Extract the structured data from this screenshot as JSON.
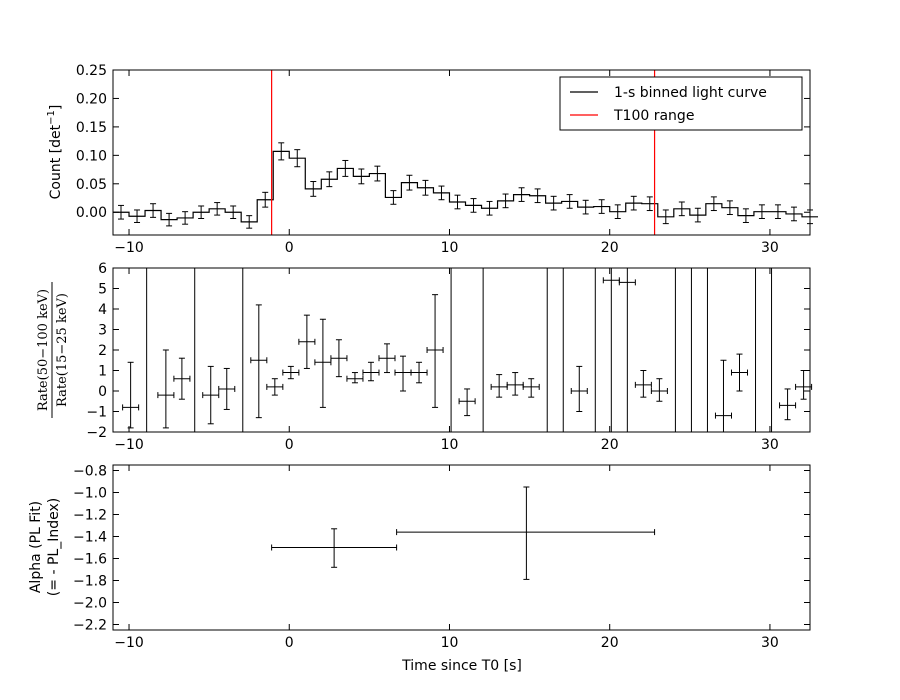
{
  "chart_data": [
    {
      "type": "line",
      "panel": "light_curve",
      "ylabel": "Count [det⁻¹ ]",
      "ylabel_main": "Count [det",
      "ylabel_sup": "−1",
      "ylabel_end": "]",
      "xlim": [
        -11,
        32.5
      ],
      "ylim": [
        -0.04,
        0.25
      ],
      "xticks": [
        -10,
        0,
        10,
        20,
        30
      ],
      "xtick_labels": [
        "−10",
        "0",
        "10",
        "20",
        "30"
      ],
      "yticks": [
        0.0,
        0.05,
        0.1,
        0.15,
        0.2,
        0.25
      ],
      "ytick_labels": [
        "0.00",
        "0.05",
        "0.10",
        "0.15",
        "0.20",
        "0.25"
      ],
      "legend": {
        "placement": "top-right",
        "entries": [
          {
            "label": "1-s binned light curve",
            "color": "#000000"
          },
          {
            "label": "T100 range",
            "color": "#ff0000"
          }
        ]
      },
      "vlines": [
        -1.1,
        22.8
      ],
      "vline_color": "#ff0000",
      "series": [
        {
          "name": "1-s binned light curve",
          "bin_start": -11,
          "bin_width": 1,
          "values": [
            0.0,
            -0.007,
            0.003,
            -0.013,
            -0.01,
            0.0,
            0.006,
            0.0,
            -0.017,
            0.022,
            0.107,
            0.095,
            0.041,
            0.058,
            0.077,
            0.063,
            0.068,
            0.026,
            0.052,
            0.043,
            0.034,
            0.018,
            0.012,
            0.007,
            0.02,
            0.031,
            0.029,
            0.016,
            0.019,
            0.009,
            0.01,
            0.001,
            0.016,
            0.015,
            -0.008,
            0.006,
            -0.005,
            0.015,
            0.008,
            -0.006,
            0.001,
            0.001,
            -0.003,
            -0.008
          ],
          "errors": [
            0.012,
            0.011,
            0.012,
            0.011,
            0.011,
            0.011,
            0.011,
            0.011,
            0.011,
            0.013,
            0.015,
            0.015,
            0.013,
            0.013,
            0.014,
            0.013,
            0.013,
            0.012,
            0.013,
            0.013,
            0.012,
            0.012,
            0.012,
            0.012,
            0.012,
            0.012,
            0.012,
            0.012,
            0.012,
            0.012,
            0.012,
            0.012,
            0.012,
            0.012,
            0.012,
            0.012,
            0.012,
            0.012,
            0.012,
            0.012,
            0.012,
            0.012,
            0.012,
            0.012
          ]
        }
      ]
    },
    {
      "type": "scatter",
      "panel": "hardness_ratio",
      "ylabel": "Rate(50−100 keV) / Rate(15−25 keV)",
      "ylabel_num": "Rate(50−100 keV)",
      "ylabel_den": "Rate(15−25 keV)",
      "xlim": [
        -11,
        32.5
      ],
      "ylim": [
        -2,
        6
      ],
      "xticks": [
        -10,
        0,
        10,
        20,
        30
      ],
      "xtick_labels": [
        "−10",
        "0",
        "10",
        "20",
        "30"
      ],
      "yticks": [
        -2,
        -1,
        0,
        1,
        2,
        3,
        4,
        5,
        6
      ],
      "ytick_labels": [
        "−2",
        "−1",
        "0",
        "1",
        "2",
        "3",
        "4",
        "5",
        "6"
      ],
      "points": [
        {
          "x": -9.9,
          "xerr": 0.5,
          "y": -0.8,
          "ylo": -1.8,
          "yhi": 1.4
        },
        {
          "x": -7.7,
          "xerr": 0.5,
          "y": -0.2,
          "ylo": -1.8,
          "yhi": 2.0
        },
        {
          "x": -6.7,
          "xerr": 0.5,
          "y": 0.6,
          "ylo": -0.4,
          "yhi": 1.6
        },
        {
          "x": -4.9,
          "xerr": 0.5,
          "y": -0.2,
          "ylo": -1.6,
          "yhi": 1.2
        },
        {
          "x": -3.9,
          "xerr": 0.5,
          "y": 0.1,
          "ylo": -0.9,
          "yhi": 1.1
        },
        {
          "x": -1.9,
          "xerr": 0.5,
          "y": 1.5,
          "ylo": -1.3,
          "yhi": 4.2
        },
        {
          "x": -0.9,
          "xerr": 0.5,
          "y": 0.2,
          "ylo": -0.2,
          "yhi": 0.6
        },
        {
          "x": 0.1,
          "xerr": 0.5,
          "y": 0.9,
          "ylo": 0.6,
          "yhi": 1.2
        },
        {
          "x": 1.1,
          "xerr": 0.5,
          "y": 2.4,
          "ylo": 1.1,
          "yhi": 3.7
        },
        {
          "x": 2.1,
          "xerr": 0.5,
          "y": 1.4,
          "ylo": -0.8,
          "yhi": 3.5
        },
        {
          "x": 3.1,
          "xerr": 0.5,
          "y": 1.6,
          "ylo": 0.7,
          "yhi": 2.5
        },
        {
          "x": 4.1,
          "xerr": 0.5,
          "y": 0.6,
          "ylo": 0.4,
          "yhi": 0.9
        },
        {
          "x": 5.1,
          "xerr": 0.5,
          "y": 0.9,
          "ylo": 0.5,
          "yhi": 1.4
        },
        {
          "x": 6.1,
          "xerr": 0.5,
          "y": 1.6,
          "ylo": 0.9,
          "yhi": 2.3
        },
        {
          "x": 7.1,
          "xerr": 0.5,
          "y": 0.9,
          "ylo": 0.0,
          "yhi": 1.7
        },
        {
          "x": 8.1,
          "xerr": 0.5,
          "y": 0.9,
          "ylo": 0.4,
          "yhi": 1.4
        },
        {
          "x": 9.1,
          "xerr": 0.5,
          "y": 2.0,
          "ylo": -0.8,
          "yhi": 4.7
        },
        {
          "x": 11.1,
          "xerr": 0.5,
          "y": -0.5,
          "ylo": -1.2,
          "yhi": 0.1
        },
        {
          "x": 13.1,
          "xerr": 0.5,
          "y": 0.2,
          "ylo": -0.3,
          "yhi": 0.8
        },
        {
          "x": 14.1,
          "xerr": 0.5,
          "y": 0.3,
          "ylo": -0.2,
          "yhi": 0.9
        },
        {
          "x": 15.1,
          "xerr": 0.5,
          "y": 0.2,
          "ylo": -0.3,
          "yhi": 0.6
        },
        {
          "x": 18.1,
          "xerr": 0.5,
          "y": 0.0,
          "ylo": -1.0,
          "yhi": 1.2
        },
        {
          "x": 20.1,
          "xerr": 0.5,
          "y": 5.4,
          "ylo": 5.4,
          "yhi": 5.4
        },
        {
          "x": 21.1,
          "xerr": 0.5,
          "y": 5.3,
          "ylo": 5.3,
          "yhi": 5.3
        },
        {
          "x": 22.1,
          "xerr": 0.5,
          "y": 0.3,
          "ylo": -0.3,
          "yhi": 1.0
        },
        {
          "x": 23.1,
          "xerr": 0.5,
          "y": 0.0,
          "ylo": -0.5,
          "yhi": 0.6
        },
        {
          "x": 27.1,
          "xerr": 0.5,
          "y": -1.2,
          "ylo": -2.0,
          "yhi": 1.5
        },
        {
          "x": 28.1,
          "xerr": 0.5,
          "y": 0.9,
          "ylo": 0.0,
          "yhi": 1.8
        },
        {
          "x": 31.1,
          "xerr": 0.5,
          "y": -0.7,
          "ylo": -1.4,
          "yhi": 0.1
        },
        {
          "x": 32.1,
          "xerr": 0.5,
          "y": 0.2,
          "ylo": -0.4,
          "yhi": 1.0
        }
      ],
      "full_span_bars_x": [
        -8.9,
        -5.9,
        -2.9,
        10.1,
        12.1,
        16.1,
        17.1,
        19.1,
        20.1,
        21.1,
        24.1,
        25.1,
        26.1,
        29.1,
        30.1
      ]
    },
    {
      "type": "scatter",
      "panel": "alpha",
      "ylabel": "Alpha (PL Fit)",
      "ylabel_line2": "(= - PL_Index)",
      "xlabel": "Time since T0 [s]",
      "xlim": [
        -11,
        32.5
      ],
      "ylim": [
        -2.25,
        -0.75
      ],
      "xticks": [
        -10,
        0,
        10,
        20,
        30
      ],
      "xtick_labels": [
        "−10",
        "0",
        "10",
        "20",
        "30"
      ],
      "yticks": [
        -2.2,
        -2.0,
        -1.8,
        -1.6,
        -1.4,
        -1.2,
        -1.0,
        -0.8
      ],
      "ytick_labels": [
        "−2.2",
        "−2.0",
        "−1.8",
        "−1.6",
        "−1.4",
        "−1.2",
        "−1.0",
        "−0.8"
      ],
      "points": [
        {
          "x": 2.8,
          "xlo": -1.1,
          "xhi": 6.7,
          "y": -1.5,
          "ylo": -1.68,
          "yhi": -1.33
        },
        {
          "x": 14.8,
          "xlo": 6.7,
          "xhi": 22.8,
          "y": -1.36,
          "ylo": -1.79,
          "yhi": -0.95
        }
      ]
    }
  ]
}
